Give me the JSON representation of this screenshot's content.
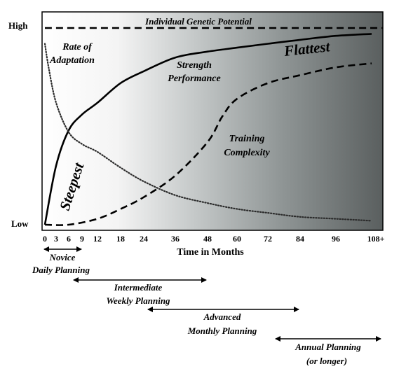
{
  "chart_data": {
    "type": "line",
    "xlabel": "Time in Months",
    "x_ticks": [
      "0",
      "3",
      "6",
      "9",
      "12",
      "18",
      "24",
      "36",
      "48",
      "60",
      "72",
      "84",
      "96",
      "108+"
    ],
    "y_ticks": {
      "high": "High",
      "low": "Low"
    },
    "ylim": [
      0,
      1
    ],
    "background": "white-to-gray gradient (left to right)",
    "series": [
      {
        "name": "Individual Genetic Potential",
        "style": "dashed-heavy",
        "points": [
          [
            0,
            1.0
          ],
          [
            108,
            1.0
          ]
        ]
      },
      {
        "name": "Strength Performance",
        "style": "solid",
        "points": [
          [
            0,
            0.0
          ],
          [
            3,
            0.3
          ],
          [
            6,
            0.48
          ],
          [
            9,
            0.56
          ],
          [
            12,
            0.62
          ],
          [
            18,
            0.72
          ],
          [
            24,
            0.78
          ],
          [
            36,
            0.85
          ],
          [
            48,
            0.88
          ],
          [
            60,
            0.9
          ],
          [
            72,
            0.92
          ],
          [
            84,
            0.94
          ],
          [
            96,
            0.96
          ],
          [
            108,
            0.97
          ]
        ]
      },
      {
        "name": "Rate of Adaptation",
        "style": "dotted",
        "points": [
          [
            0,
            0.92
          ],
          [
            1,
            0.8
          ],
          [
            3,
            0.62
          ],
          [
            6,
            0.47
          ],
          [
            9,
            0.41
          ],
          [
            12,
            0.37
          ],
          [
            18,
            0.29
          ],
          [
            24,
            0.22
          ],
          [
            36,
            0.15
          ],
          [
            48,
            0.11
          ],
          [
            60,
            0.08
          ],
          [
            72,
            0.06
          ],
          [
            84,
            0.04
          ],
          [
            96,
            0.03
          ],
          [
            108,
            0.02
          ]
        ]
      },
      {
        "name": "Training Complexity",
        "style": "dashed",
        "points": [
          [
            0,
            0.0
          ],
          [
            6,
            0.0
          ],
          [
            12,
            0.03
          ],
          [
            18,
            0.08
          ],
          [
            24,
            0.14
          ],
          [
            36,
            0.25
          ],
          [
            48,
            0.42
          ],
          [
            54,
            0.55
          ],
          [
            60,
            0.64
          ],
          [
            72,
            0.72
          ],
          [
            84,
            0.76
          ],
          [
            96,
            0.8
          ],
          [
            108,
            0.82
          ]
        ]
      }
    ],
    "annotations": {
      "genetic": "Individual Genetic Potential",
      "rate_1": "Rate of",
      "rate_2": "Adaptation",
      "strength_1": "Strength",
      "strength_2": "Performance",
      "training_1": "Training",
      "training_2": "Complexity",
      "steepest": "Steepest",
      "flattest": "Flattest"
    },
    "phases": [
      {
        "label_1": "Novice",
        "label_2": "Daily Planning",
        "start": 0,
        "end": 9
      },
      {
        "label_1": "Intermediate",
        "label_2": "Weekly Planning",
        "start": 9,
        "end": 48
      },
      {
        "label_1": "Advanced",
        "label_2": "Monthly Planning",
        "start": 24,
        "end": 84
      },
      {
        "label_1": "Annual Planning",
        "label_2": "(or longer)",
        "start": 72,
        "end": 108
      }
    ]
  }
}
